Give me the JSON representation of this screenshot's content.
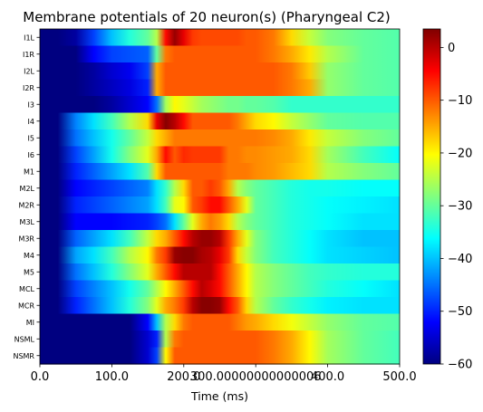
{
  "chart_data": {
    "type": "heatmap",
    "title": "Membrane potentials of 20 neuron(s) (Pharyngeal C2)",
    "xlabel": "Time (ms)",
    "ylabel": "",
    "xlim": [
      0,
      500
    ],
    "x_ticks": [
      "0.0",
      "100.0",
      "200.0",
      "300.00000000000006",
      "400.0",
      "500.0"
    ],
    "x_tick_values": [
      0,
      100,
      200,
      300,
      400,
      500
    ],
    "colorbar": {
      "colormap": "jet",
      "vmin": -60,
      "vmax": 3.5,
      "ticks": [
        "0",
        "−10",
        "−20",
        "−30",
        "−40",
        "−50",
        "−60"
      ],
      "tick_values": [
        0,
        -10,
        -20,
        -30,
        -40,
        -50,
        -60
      ]
    },
    "neurons": [
      "I1L",
      "I1R",
      "I2L",
      "I2R",
      "I3",
      "I4",
      "I5",
      "I6",
      "M1",
      "M2L",
      "M2R",
      "M3L",
      "M3R",
      "M4",
      "M5",
      "MCL",
      "MCR",
      "MI",
      "NSML",
      "NSMR"
    ],
    "time_ms": [
      0,
      25,
      50,
      75,
      100,
      125,
      150,
      162.5,
      175,
      187.5,
      200,
      212.5,
      225,
      237.5,
      250,
      262.5,
      275,
      287.5,
      300,
      325,
      350,
      375,
      400,
      450,
      500
    ],
    "potentials_mV": [
      [
        -60,
        -60,
        -58,
        -48,
        -40,
        -34,
        -30,
        -25,
        -5,
        2,
        -3,
        -8,
        -9,
        -9,
        -9,
        -9,
        -9,
        -10,
        -10,
        -12,
        -18,
        -24,
        -28,
        -30,
        -31
      ],
      [
        -60,
        -60,
        -60,
        -52,
        -48,
        -47,
        -46,
        -30,
        -12,
        -10,
        -10,
        -10,
        -10,
        -10,
        -10,
        -10,
        -10,
        -10,
        -10,
        -12,
        -15,
        -19,
        -25,
        -30,
        -31
      ],
      [
        -60,
        -60,
        -60,
        -58,
        -55,
        -53,
        -48,
        -15,
        -10,
        -10,
        -10,
        -10,
        -10,
        -10,
        -10,
        -10,
        -10,
        -10,
        -10,
        -10,
        -12,
        -17,
        -27,
        -30,
        -31
      ],
      [
        -60,
        -60,
        -60,
        -58,
        -56,
        -54,
        -50,
        -15,
        -10,
        -10,
        -10,
        -10,
        -10,
        -10,
        -10,
        -10,
        -10,
        -10,
        -10,
        -10,
        -12,
        -15,
        -27,
        -30,
        -31
      ],
      [
        -60,
        -60,
        -60,
        -60,
        -58,
        -55,
        -52,
        -45,
        -26,
        -20,
        -22,
        -24,
        -26,
        -27,
        -28,
        -29,
        -29,
        -30,
        -30,
        -31,
        -33,
        -33,
        -33,
        -33,
        -33
      ],
      [
        -60,
        -60,
        -44,
        -38,
        -32,
        -25,
        -18,
        -3,
        3,
        0,
        -5,
        -10,
        -10,
        -10,
        -10,
        -10,
        -12,
        -15,
        -18,
        -20,
        -24,
        -27,
        -30,
        -31,
        -31
      ],
      [
        -60,
        -60,
        -45,
        -40,
        -35,
        -30,
        -24,
        -18,
        -15,
        -12,
        -12,
        -12,
        -12,
        -12,
        -12,
        -12,
        -12,
        -12,
        -12,
        -13,
        -15,
        -19,
        -24,
        -28,
        -30
      ],
      [
        -60,
        -60,
        -48,
        -42,
        -35,
        -28,
        -22,
        -15,
        -5,
        -10,
        -7,
        -8,
        -8,
        -8,
        -8,
        -12,
        -12,
        -13,
        -13,
        -14,
        -15,
        -18,
        -26,
        -32,
        -36
      ],
      [
        -60,
        -60,
        -50,
        -46,
        -42,
        -38,
        -31,
        -18,
        -10,
        -10,
        -10,
        -10,
        -10,
        -10,
        -10,
        -12,
        -12,
        -12,
        -13,
        -14,
        -16,
        -18,
        -25,
        -28,
        -30
      ],
      [
        -60,
        -60,
        -52,
        -50,
        -48,
        -46,
        -44,
        -38,
        -33,
        -25,
        -18,
        -10,
        -10,
        -8,
        -10,
        -15,
        -25,
        -28,
        -30,
        -32,
        -34,
        -35,
        -35,
        -36,
        -36
      ],
      [
        -60,
        -60,
        -50,
        -48,
        -46,
        -44,
        -42,
        -38,
        -32,
        -22,
        -20,
        -10,
        -8,
        -5,
        -5,
        -10,
        -15,
        -22,
        -30,
        -32,
        -34,
        -35,
        -36,
        -37,
        -38
      ],
      [
        -60,
        -60,
        -52,
        -52,
        -52,
        -51,
        -50,
        -48,
        -45,
        -38,
        -30,
        -22,
        -15,
        -12,
        -14,
        -18,
        -25,
        -28,
        -30,
        -32,
        -34,
        -35,
        -36,
        -38,
        -38
      ],
      [
        -60,
        -60,
        -46,
        -42,
        -38,
        -32,
        -24,
        -18,
        -15,
        -10,
        -5,
        0,
        2,
        2,
        0,
        -8,
        -15,
        -22,
        -28,
        -32,
        -34,
        -36,
        -38,
        -40,
        -40
      ],
      [
        -60,
        -60,
        -42,
        -38,
        -32,
        -25,
        -20,
        -12,
        -8,
        2,
        3,
        3,
        1,
        0,
        -3,
        -8,
        -18,
        -24,
        -28,
        -32,
        -34,
        -36,
        -38,
        -39,
        -40
      ],
      [
        -60,
        -60,
        -45,
        -40,
        -34,
        -28,
        -22,
        -15,
        -10,
        -5,
        0,
        0,
        0,
        0,
        -5,
        -10,
        -15,
        -20,
        -25,
        -28,
        -30,
        -32,
        -33,
        -34,
        -34
      ],
      [
        -60,
        -60,
        -48,
        -44,
        -40,
        -35,
        -30,
        -25,
        -20,
        -15,
        -10,
        -5,
        0,
        -2,
        -5,
        -10,
        -15,
        -20,
        -25,
        -28,
        -30,
        -32,
        -34,
        -36,
        -38
      ],
      [
        -60,
        -60,
        -50,
        -45,
        -40,
        -34,
        -28,
        -22,
        -15,
        -12,
        -8,
        0,
        3,
        3,
        2,
        -5,
        -10,
        -18,
        -25,
        -30,
        -33,
        -35,
        -37,
        -38,
        -38
      ],
      [
        -60,
        -60,
        -60,
        -60,
        -60,
        -60,
        -52,
        -40,
        -25,
        -18,
        -12,
        -10,
        -10,
        -10,
        -10,
        -10,
        -12,
        -14,
        -15,
        -18,
        -21,
        -24,
        -27,
        -30,
        -31
      ],
      [
        -60,
        -60,
        -60,
        -60,
        -60,
        -60,
        -55,
        -50,
        -25,
        -12,
        -10,
        -10,
        -10,
        -10,
        -10,
        -10,
        -10,
        -10,
        -10,
        -12,
        -15,
        -20,
        -26,
        -30,
        -32
      ],
      [
        -60,
        -60,
        -60,
        -60,
        -60,
        -60,
        -55,
        -48,
        -20,
        -10,
        -10,
        -10,
        -10,
        -10,
        -10,
        -10,
        -10,
        -10,
        -10,
        -12,
        -15,
        -20,
        -26,
        -30,
        -32
      ]
    ]
  }
}
